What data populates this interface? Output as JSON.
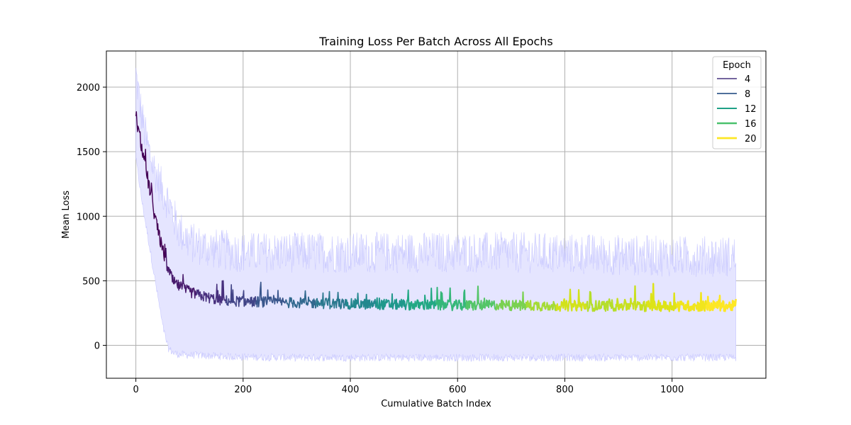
{
  "chart_data": {
    "type": "line",
    "title": "Training Loss Per Batch Across All Epochs",
    "xlabel": "Cumulative Batch Index",
    "ylabel": "Mean Loss",
    "xlim": [
      -55,
      1175
    ],
    "ylim": [
      -255,
      2280
    ],
    "x_ticks": [
      0,
      200,
      400,
      600,
      800,
      1000
    ],
    "y_ticks": [
      0,
      500,
      1000,
      1500,
      2000
    ],
    "x_tick_labels": [
      "0",
      "200",
      "400",
      "600",
      "800",
      "1000"
    ],
    "y_tick_labels": [
      "0",
      "500",
      "1000",
      "1500",
      "2000"
    ],
    "grid": true,
    "legend": {
      "title": "Epoch",
      "placement": "top-right",
      "entries": [
        {
          "label": "4",
          "color": "#46327e"
        },
        {
          "label": "8",
          "color": "#365c8d"
        },
        {
          "label": "12",
          "color": "#1fa187"
        },
        {
          "label": "16",
          "color": "#4ac16d"
        },
        {
          "label": "20",
          "color": "#fde725"
        }
      ]
    },
    "epochs": 20,
    "batches_per_epoch": 56,
    "epoch_colors": [
      "#440154",
      "#481a6c",
      "#472f7d",
      "#414487",
      "#39568c",
      "#31688e",
      "#2a788e",
      "#23888e",
      "#1f988b",
      "#22a884",
      "#35b779",
      "#54c568",
      "#7ad151",
      "#a5db36",
      "#d2e21b",
      "#b5de2b",
      "#c8e020",
      "#dde318",
      "#f1e51d",
      "#fde725"
    ],
    "band_color": "#e5e5ff",
    "band_edge_color": "#b8b8ff",
    "series": [
      {
        "name": "Mean Loss",
        "x": [
          0,
          5,
          10,
          15,
          20,
          25,
          30,
          35,
          40,
          45,
          50,
          55,
          60,
          65,
          70,
          80,
          90,
          100,
          110,
          120,
          130,
          140,
          150,
          170,
          200,
          250,
          300,
          350,
          400,
          450,
          500,
          550,
          600,
          650,
          700,
          750,
          800,
          850,
          900,
          950,
          1000,
          1050,
          1100,
          1119
        ],
        "y": [
          1790,
          1650,
          1560,
          1430,
          1330,
          1230,
          1120,
          1010,
          910,
          820,
          740,
          660,
          590,
          540,
          490,
          460,
          435,
          415,
          400,
          385,
          375,
          365,
          355,
          345,
          340,
          335,
          330,
          325,
          320,
          318,
          315,
          312,
          310,
          310,
          310,
          308,
          306,
          306,
          305,
          305,
          305,
          305,
          305,
          305
        ]
      },
      {
        "name": "Upper band",
        "x": [
          0,
          10,
          20,
          30,
          40,
          50,
          60,
          70,
          80,
          100,
          130,
          160,
          200,
          300,
          400,
          500,
          600,
          700,
          800,
          900,
          1000,
          1100,
          1119
        ],
        "y": [
          2100,
          1800,
          1570,
          1420,
          1300,
          1200,
          1120,
          1000,
          900,
          800,
          760,
          740,
          720,
          720,
          720,
          720,
          720,
          720,
          710,
          700,
          690,
          690,
          690
        ]
      },
      {
        "name": "Lower band",
        "x": [
          0,
          10,
          20,
          30,
          40,
          50,
          60,
          70,
          80,
          100,
          130,
          160,
          200,
          300,
          400,
          500,
          600,
          700,
          800,
          900,
          1000,
          1100,
          1119
        ],
        "y": [
          1450,
          1150,
          900,
          650,
          400,
          150,
          -20,
          -60,
          -70,
          -75,
          -80,
          -85,
          -90,
          -95,
          -95,
          -95,
          -95,
          -95,
          -95,
          -95,
          -95,
          -95,
          -95
        ]
      }
    ]
  }
}
